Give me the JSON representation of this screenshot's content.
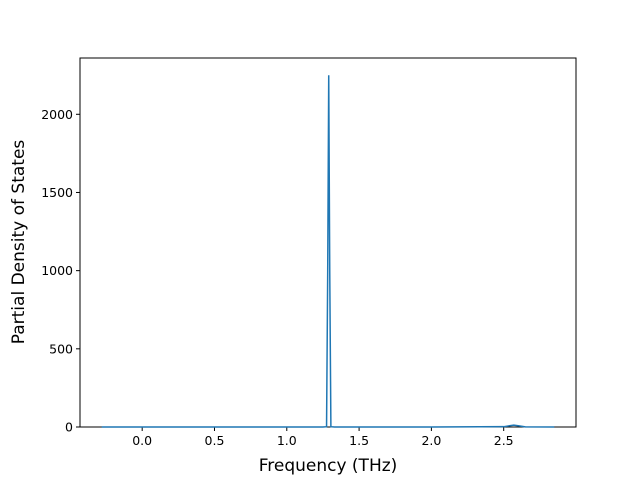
{
  "chart_data": {
    "type": "line",
    "xlabel": "Frequency (THz)",
    "ylabel": "Partial Density of States",
    "x": [
      -0.28,
      0.0,
      0.5,
      1.0,
      1.25,
      1.275,
      1.283,
      1.29,
      1.297,
      1.305,
      1.33,
      1.5,
      2.0,
      2.5,
      2.54,
      2.57,
      2.6,
      2.65,
      2.85
    ],
    "series": [
      {
        "name": "PDOS",
        "color": "#1f77b4",
        "values": [
          0,
          0,
          0,
          0,
          0,
          2,
          1000,
          2250,
          1000,
          2,
          0,
          0,
          0,
          2,
          8,
          12,
          8,
          1,
          0
        ]
      }
    ],
    "xlim": [
      -0.43,
      3.0
    ],
    "ylim": [
      0,
      2360
    ],
    "xticks": [
      {
        "value": 0,
        "label": "0.0"
      },
      0.5,
      {
        "value": 1,
        "label": "1.0"
      },
      1.5,
      {
        "value": 2,
        "label": "2.0"
      },
      2.5
    ],
    "yticks": [
      0,
      500,
      1000,
      1500,
      2000
    ]
  }
}
